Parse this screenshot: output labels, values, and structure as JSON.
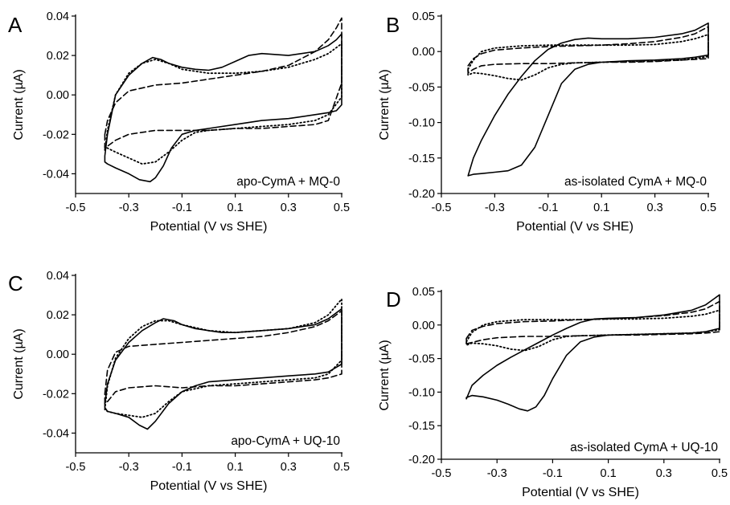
{
  "chart_data": [
    {
      "type": "line",
      "panel": "A",
      "annotation": "apo-CymA + MQ-0",
      "xlabel": "Potential (V vs SHE)",
      "ylabel": "Current (µA)",
      "xlim": [
        -0.5,
        0.5
      ],
      "ylim": [
        -0.05,
        0.04
      ],
      "xticks": [
        -0.5,
        -0.3,
        -0.1,
        0.1,
        0.3,
        0.5
      ],
      "xtick_labels": [
        "-0.5",
        "-0.3",
        "-0.1",
        "0.1",
        "0.3",
        "0.5"
      ],
      "yticks": [
        -0.04,
        -0.02,
        0.0,
        0.02,
        0.04
      ],
      "ytick_labels": [
        "-0.04",
        "-0.02",
        "0.00",
        "0.02",
        "0.04"
      ],
      "series": [
        {
          "style": "solid",
          "x": [
            -0.39,
            -0.38,
            -0.35,
            -0.3,
            -0.25,
            -0.21,
            -0.18,
            -0.15,
            -0.1,
            -0.05,
            0.0,
            0.05,
            0.1,
            0.15,
            0.2,
            0.3,
            0.4,
            0.45,
            0.48,
            0.5,
            0.5,
            0.48,
            0.45,
            0.4,
            0.3,
            0.2,
            0.1,
            0.0,
            -0.05,
            -0.1,
            -0.14,
            -0.17,
            -0.2,
            -0.22,
            -0.26,
            -0.3,
            -0.35,
            -0.38,
            -0.39,
            -0.39
          ],
          "y": [
            -0.031,
            -0.02,
            0.0,
            0.01,
            0.016,
            0.019,
            0.018,
            0.016,
            0.014,
            0.013,
            0.0125,
            0.014,
            0.017,
            0.02,
            0.021,
            0.02,
            0.022,
            0.025,
            0.028,
            0.031,
            -0.005,
            -0.008,
            -0.009,
            -0.01,
            -0.012,
            -0.013,
            -0.015,
            -0.017,
            -0.018,
            -0.02,
            -0.027,
            -0.036,
            -0.042,
            -0.044,
            -0.043,
            -0.04,
            -0.037,
            -0.035,
            -0.034,
            -0.031
          ]
        },
        {
          "style": "dashed",
          "x": [
            -0.39,
            -0.38,
            -0.35,
            -0.3,
            -0.2,
            -0.1,
            0.0,
            0.1,
            0.2,
            0.3,
            0.4,
            0.45,
            0.48,
            0.5,
            0.5,
            0.45,
            0.4,
            0.3,
            0.2,
            0.1,
            0.0,
            -0.1,
            -0.2,
            -0.3,
            -0.35,
            -0.38,
            -0.39,
            -0.39
          ],
          "y": [
            -0.02,
            -0.013,
            -0.004,
            0.002,
            0.005,
            0.006,
            0.008,
            0.01,
            0.012,
            0.015,
            0.022,
            0.028,
            0.034,
            0.039,
            0.006,
            -0.013,
            -0.015,
            -0.016,
            -0.017,
            -0.017,
            -0.018,
            -0.018,
            -0.018,
            -0.02,
            -0.023,
            -0.026,
            -0.027,
            -0.02
          ]
        },
        {
          "style": "dotted",
          "x": [
            -0.39,
            -0.38,
            -0.35,
            -0.3,
            -0.25,
            -0.2,
            -0.15,
            -0.1,
            0.0,
            0.1,
            0.2,
            0.3,
            0.4,
            0.45,
            0.48,
            0.5,
            0.5,
            0.45,
            0.4,
            0.3,
            0.2,
            0.1,
            0.0,
            -0.05,
            -0.1,
            -0.15,
            -0.2,
            -0.25,
            -0.3,
            -0.35,
            -0.38,
            -0.39,
            -0.39
          ],
          "y": [
            -0.028,
            -0.018,
            0.0,
            0.011,
            0.016,
            0.018,
            0.016,
            0.013,
            0.011,
            0.011,
            0.012,
            0.014,
            0.018,
            0.021,
            0.024,
            0.026,
            -0.001,
            -0.01,
            -0.013,
            -0.015,
            -0.016,
            -0.017,
            -0.018,
            -0.019,
            -0.023,
            -0.029,
            -0.034,
            -0.035,
            -0.032,
            -0.029,
            -0.027,
            -0.026,
            -0.028
          ]
        }
      ]
    },
    {
      "type": "line",
      "panel": "B",
      "annotation": "as-isolated CymA + MQ-0",
      "xlabel": "Potential (V vs SHE)",
      "ylabel": "Current (µA)",
      "xlim": [
        -0.5,
        0.5
      ],
      "ylim": [
        -0.2,
        0.05
      ],
      "xticks": [
        -0.5,
        -0.3,
        -0.1,
        0.1,
        0.3,
        0.5
      ],
      "xtick_labels": [
        "-0.5",
        "-0.3",
        "-0.1",
        "0.1",
        "0.3",
        "0.5"
      ],
      "yticks": [
        -0.2,
        -0.15,
        -0.1,
        -0.05,
        0.0,
        0.05
      ],
      "ytick_labels": [
        "-0.20",
        "-0.15",
        "-0.10",
        "-0.05",
        "0.00",
        "0.05"
      ],
      "series": [
        {
          "style": "solid",
          "x": [
            -0.4,
            -0.38,
            -0.35,
            -0.3,
            -0.25,
            -0.2,
            -0.15,
            -0.1,
            -0.05,
            0.0,
            0.05,
            0.1,
            0.2,
            0.3,
            0.4,
            0.45,
            0.5,
            0.5,
            0.45,
            0.4,
            0.3,
            0.2,
            0.1,
            0.05,
            0.0,
            -0.05,
            -0.1,
            -0.15,
            -0.2,
            -0.25,
            -0.3,
            -0.35,
            -0.38,
            -0.4,
            -0.4
          ],
          "y": [
            -0.175,
            -0.15,
            -0.125,
            -0.09,
            -0.06,
            -0.035,
            -0.013,
            0.003,
            0.012,
            0.017,
            0.019,
            0.018,
            0.018,
            0.02,
            0.025,
            0.03,
            0.04,
            -0.005,
            -0.008,
            -0.01,
            -0.012,
            -0.013,
            -0.015,
            -0.018,
            -0.025,
            -0.045,
            -0.09,
            -0.135,
            -0.16,
            -0.168,
            -0.17,
            -0.172,
            -0.173,
            -0.175,
            -0.175
          ]
        },
        {
          "style": "dashed",
          "x": [
            -0.4,
            -0.38,
            -0.35,
            -0.3,
            -0.2,
            -0.1,
            0.0,
            0.1,
            0.2,
            0.3,
            0.4,
            0.45,
            0.5,
            0.5,
            0.45,
            0.4,
            0.3,
            0.2,
            0.1,
            0.0,
            -0.1,
            -0.2,
            -0.3,
            -0.35,
            -0.38,
            -0.4,
            -0.4
          ],
          "y": [
            -0.02,
            -0.01,
            -0.003,
            0.002,
            0.005,
            0.007,
            0.008,
            0.009,
            0.011,
            0.014,
            0.02,
            0.025,
            0.035,
            -0.01,
            -0.011,
            -0.012,
            -0.014,
            -0.015,
            -0.015,
            -0.016,
            -0.017,
            -0.017,
            -0.018,
            -0.02,
            -0.025,
            -0.03,
            -0.02
          ]
        },
        {
          "style": "dotted",
          "x": [
            -0.4,
            -0.38,
            -0.35,
            -0.3,
            -0.2,
            -0.1,
            0.0,
            0.1,
            0.2,
            0.3,
            0.4,
            0.45,
            0.5,
            0.5,
            0.45,
            0.4,
            0.3,
            0.2,
            0.1,
            0.0,
            -0.05,
            -0.1,
            -0.15,
            -0.2,
            -0.25,
            -0.3,
            -0.35,
            -0.38,
            -0.4,
            -0.4
          ],
          "y": [
            -0.025,
            -0.012,
            0.0,
            0.005,
            0.008,
            0.009,
            0.009,
            0.009,
            0.009,
            0.01,
            0.014,
            0.018,
            0.024,
            -0.007,
            -0.01,
            -0.012,
            -0.013,
            -0.014,
            -0.015,
            -0.016,
            -0.018,
            -0.023,
            -0.033,
            -0.04,
            -0.038,
            -0.034,
            -0.031,
            -0.03,
            -0.033,
            -0.025
          ]
        }
      ]
    },
    {
      "type": "line",
      "panel": "C",
      "annotation": "apo-CymA + UQ-10",
      "xlabel": "Potential (V vs SHE)",
      "ylabel": "Current (µA)",
      "xlim": [
        -0.5,
        0.5
      ],
      "ylim": [
        -0.05,
        0.04
      ],
      "xticks": [
        -0.5,
        -0.3,
        -0.1,
        0.1,
        0.3,
        0.5
      ],
      "xtick_labels": [
        "-0.5",
        "-0.3",
        "-0.1",
        "0.1",
        "0.3",
        "0.5"
      ],
      "yticks": [
        -0.04,
        -0.02,
        0.0,
        0.02,
        0.04
      ],
      "ytick_labels": [
        "-0.04",
        "-0.02",
        "0.00",
        "0.02",
        "0.04"
      ],
      "series": [
        {
          "style": "solid",
          "x": [
            -0.39,
            -0.38,
            -0.35,
            -0.3,
            -0.25,
            -0.2,
            -0.17,
            -0.13,
            -0.1,
            -0.05,
            0.0,
            0.05,
            0.1,
            0.2,
            0.3,
            0.4,
            0.45,
            0.5,
            0.5,
            0.45,
            0.4,
            0.3,
            0.2,
            0.1,
            0.0,
            -0.05,
            -0.1,
            -0.15,
            -0.2,
            -0.23,
            -0.26,
            -0.3,
            -0.35,
            -0.38,
            -0.39,
            -0.39
          ],
          "y": [
            -0.025,
            -0.015,
            -0.003,
            0.006,
            0.012,
            0.016,
            0.018,
            0.017,
            0.015,
            0.013,
            0.012,
            0.011,
            0.011,
            0.012,
            0.013,
            0.015,
            0.018,
            0.023,
            -0.005,
            -0.009,
            -0.01,
            -0.011,
            -0.012,
            -0.013,
            -0.014,
            -0.016,
            -0.019,
            -0.025,
            -0.034,
            -0.038,
            -0.036,
            -0.032,
            -0.03,
            -0.029,
            -0.027,
            -0.025
          ]
        },
        {
          "style": "dashed",
          "x": [
            -0.39,
            -0.38,
            -0.35,
            -0.3,
            -0.2,
            -0.1,
            0.0,
            0.1,
            0.2,
            0.3,
            0.4,
            0.45,
            0.5,
            0.5,
            0.45,
            0.4,
            0.3,
            0.2,
            0.1,
            0.0,
            -0.1,
            -0.2,
            -0.3,
            -0.35,
            -0.38,
            -0.39,
            -0.39
          ],
          "y": [
            -0.02,
            -0.008,
            0.001,
            0.004,
            0.005,
            0.006,
            0.007,
            0.008,
            0.009,
            0.011,
            0.014,
            0.017,
            0.022,
            -0.01,
            -0.012,
            -0.013,
            -0.014,
            -0.015,
            -0.016,
            -0.016,
            -0.017,
            -0.016,
            -0.017,
            -0.019,
            -0.024,
            -0.025,
            -0.02
          ]
        },
        {
          "style": "dotted",
          "x": [
            -0.39,
            -0.38,
            -0.35,
            -0.3,
            -0.25,
            -0.2,
            -0.15,
            -0.1,
            0.0,
            0.1,
            0.2,
            0.3,
            0.4,
            0.45,
            0.5,
            0.5,
            0.45,
            0.4,
            0.3,
            0.2,
            0.1,
            0.0,
            -0.1,
            -0.15,
            -0.2,
            -0.25,
            -0.3,
            -0.35,
            -0.38,
            -0.39,
            -0.39
          ],
          "y": [
            -0.028,
            -0.016,
            -0.002,
            0.008,
            0.014,
            0.017,
            0.017,
            0.015,
            0.012,
            0.011,
            0.012,
            0.013,
            0.016,
            0.02,
            0.028,
            -0.003,
            -0.01,
            -0.012,
            -0.013,
            -0.014,
            -0.015,
            -0.016,
            -0.019,
            -0.024,
            -0.03,
            -0.032,
            -0.031,
            -0.03,
            -0.029,
            -0.028,
            -0.028
          ]
        }
      ]
    },
    {
      "type": "line",
      "panel": "D",
      "annotation": "as-isolated CymA + UQ-10",
      "xlabel": "Potential (V vs SHE)",
      "ylabel": "Current (µA)",
      "xlim": [
        -0.5,
        0.5
      ],
      "ylim": [
        -0.2,
        0.05
      ],
      "xticks": [
        -0.5,
        -0.3,
        -0.1,
        0.1,
        0.3,
        0.5
      ],
      "xtick_labels": [
        "-0.5",
        "-0.3",
        "-0.1",
        "0.1",
        "0.3",
        "0.5"
      ],
      "yticks": [
        -0.2,
        -0.15,
        -0.1,
        -0.05,
        0.0,
        0.05
      ],
      "ytick_labels": [
        "-0.20",
        "-0.15",
        "-0.10",
        "-0.05",
        "0.00",
        "0.05"
      ],
      "series": [
        {
          "style": "solid",
          "x": [
            -0.41,
            -0.39,
            -0.35,
            -0.3,
            -0.25,
            -0.2,
            -0.15,
            -0.1,
            -0.05,
            0.0,
            0.05,
            0.1,
            0.2,
            0.3,
            0.4,
            0.45,
            0.5,
            0.5,
            0.45,
            0.4,
            0.3,
            0.2,
            0.1,
            0.05,
            0.0,
            -0.05,
            -0.1,
            -0.13,
            -0.16,
            -0.19,
            -0.22,
            -0.26,
            -0.3,
            -0.35,
            -0.39,
            -0.41,
            -0.41
          ],
          "y": [
            -0.11,
            -0.09,
            -0.075,
            -0.06,
            -0.048,
            -0.037,
            -0.026,
            -0.015,
            -0.005,
            0.004,
            0.009,
            0.01,
            0.011,
            0.015,
            0.022,
            0.03,
            0.045,
            -0.005,
            -0.01,
            -0.012,
            -0.013,
            -0.014,
            -0.015,
            -0.018,
            -0.025,
            -0.045,
            -0.08,
            -0.105,
            -0.122,
            -0.128,
            -0.125,
            -0.118,
            -0.112,
            -0.107,
            -0.105,
            -0.108,
            -0.11
          ]
        },
        {
          "style": "dashed",
          "x": [
            -0.41,
            -0.39,
            -0.35,
            -0.3,
            -0.2,
            -0.1,
            0.0,
            0.1,
            0.2,
            0.3,
            0.4,
            0.45,
            0.5,
            0.5,
            0.45,
            0.4,
            0.3,
            0.2,
            0.1,
            0.0,
            -0.1,
            -0.2,
            -0.3,
            -0.35,
            -0.39,
            -0.41,
            -0.41
          ],
          "y": [
            -0.02,
            -0.008,
            -0.002,
            0.002,
            0.005,
            0.006,
            0.008,
            0.009,
            0.011,
            0.014,
            0.019,
            0.024,
            0.035,
            -0.01,
            -0.012,
            -0.013,
            -0.014,
            -0.015,
            -0.015,
            -0.016,
            -0.017,
            -0.017,
            -0.019,
            -0.022,
            -0.026,
            -0.028,
            -0.02
          ]
        },
        {
          "style": "dotted",
          "x": [
            -0.41,
            -0.39,
            -0.35,
            -0.3,
            -0.2,
            -0.1,
            0.0,
            0.1,
            0.2,
            0.3,
            0.4,
            0.45,
            0.5,
            0.5,
            0.45,
            0.4,
            0.3,
            0.2,
            0.1,
            0.0,
            -0.05,
            -0.1,
            -0.15,
            -0.2,
            -0.25,
            -0.3,
            -0.35,
            -0.39,
            -0.41,
            -0.41
          ],
          "y": [
            -0.025,
            -0.011,
            0.0,
            0.005,
            0.008,
            0.008,
            0.008,
            0.009,
            0.009,
            0.01,
            0.013,
            0.016,
            0.022,
            -0.007,
            -0.01,
            -0.012,
            -0.013,
            -0.014,
            -0.015,
            -0.016,
            -0.017,
            -0.022,
            -0.032,
            -0.038,
            -0.036,
            -0.031,
            -0.028,
            -0.027,
            -0.03,
            -0.025
          ]
        }
      ]
    }
  ]
}
